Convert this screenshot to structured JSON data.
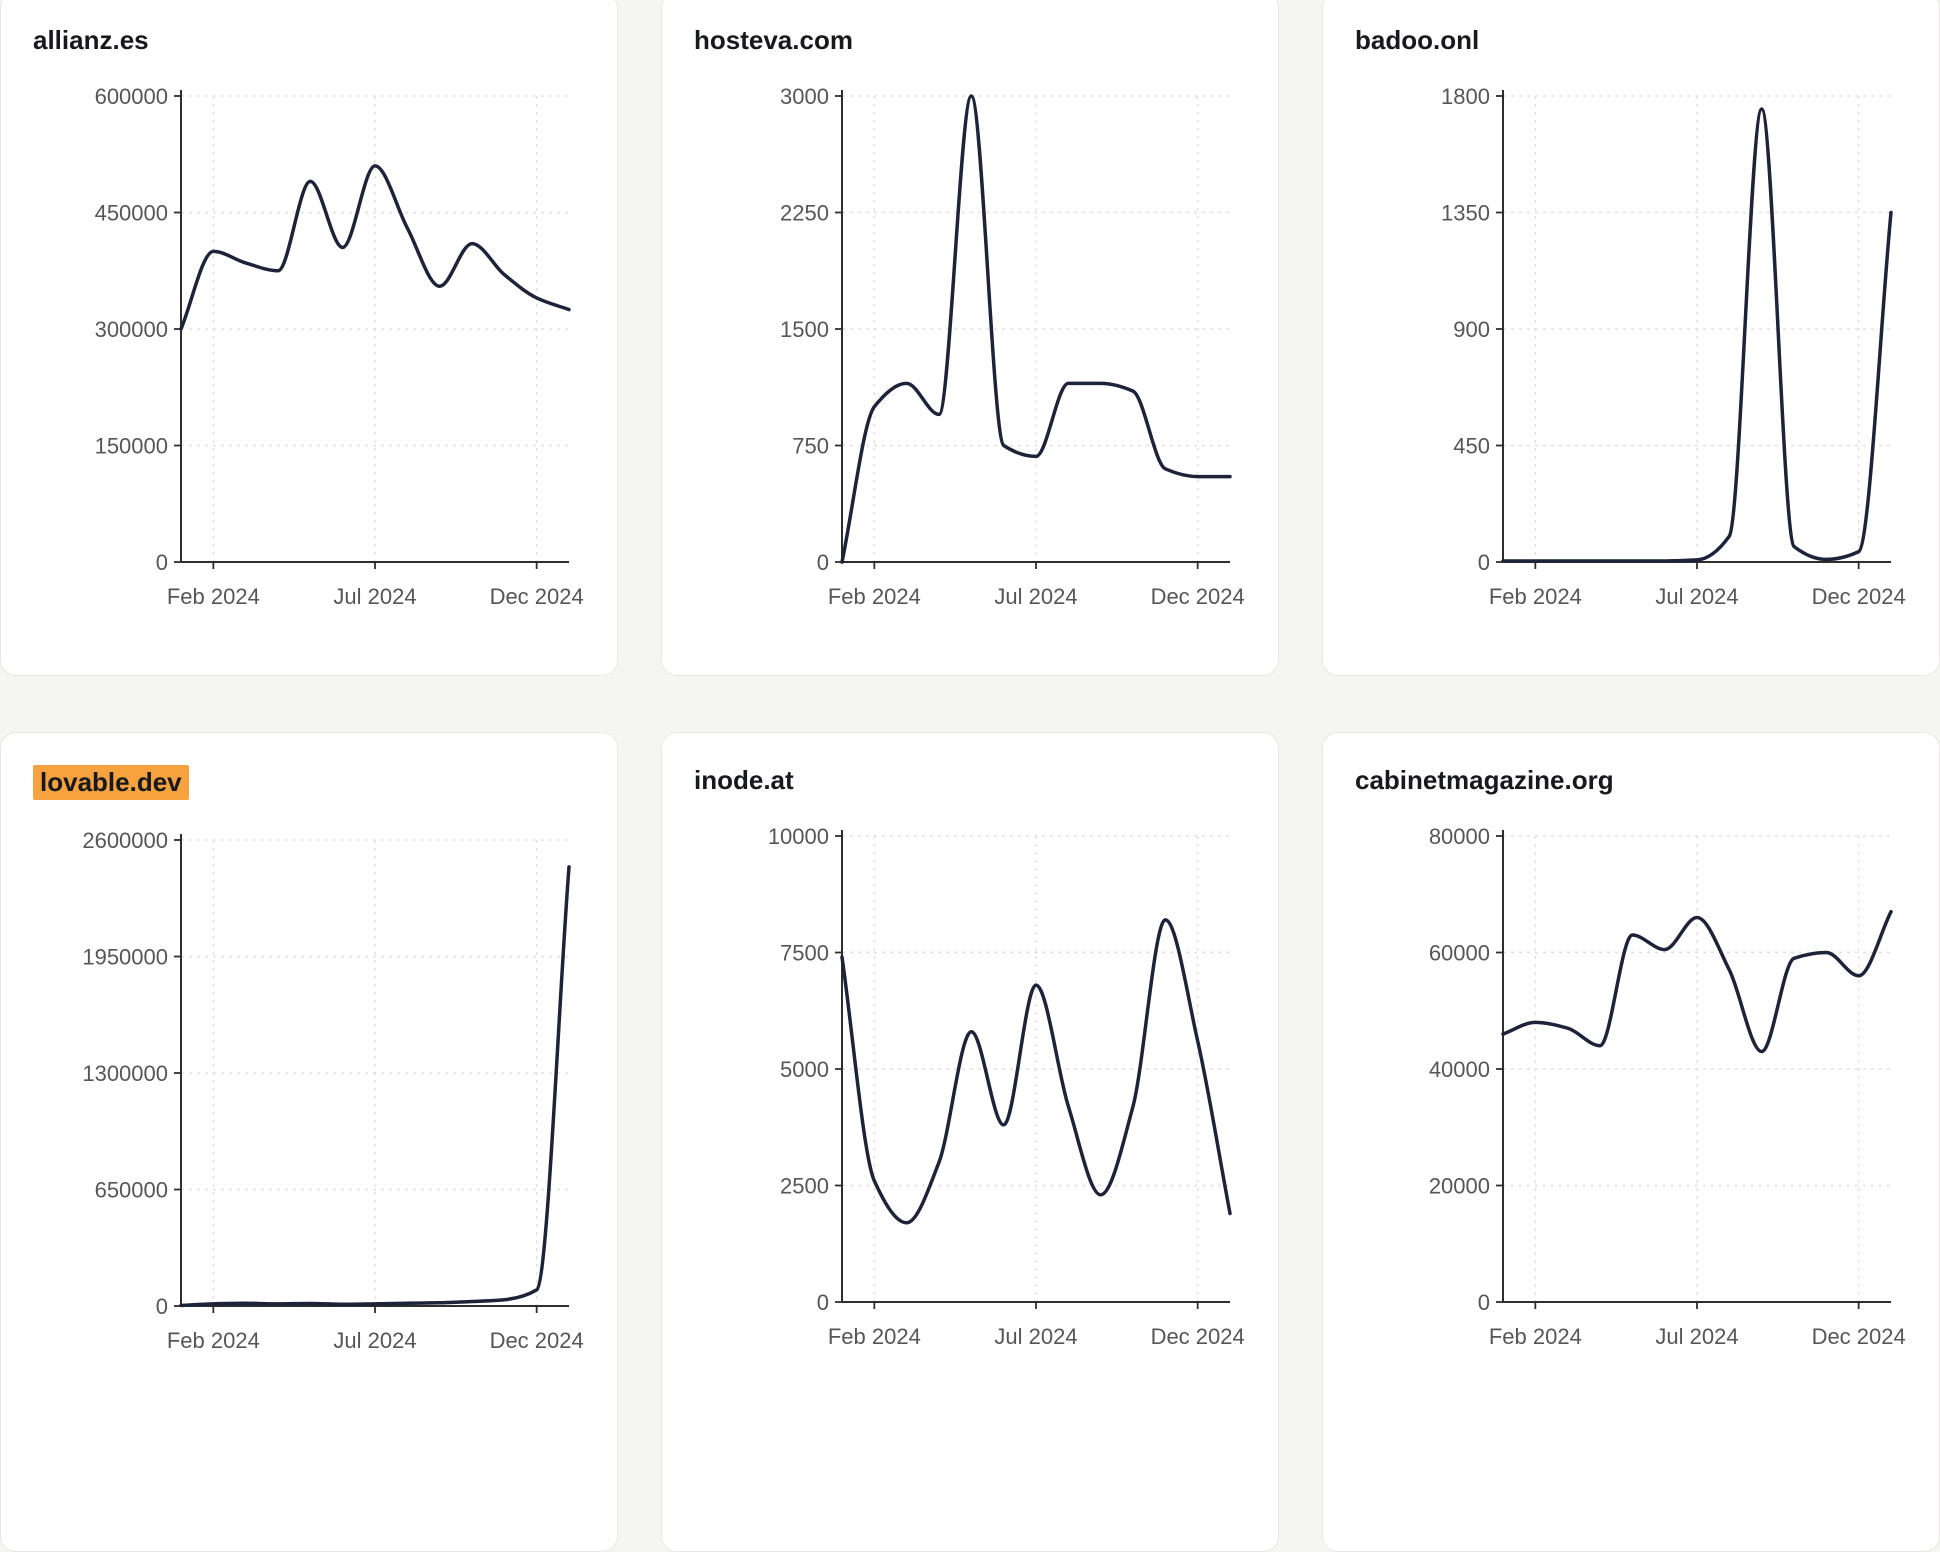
{
  "colors": {
    "line": "#1d2339",
    "axis": "#2e2e2e",
    "grid": "#e2e0dd",
    "tick_label": "#565656",
    "title": "#18181f",
    "title_highlight": "#f6a23e",
    "card_background": "#ffffff",
    "page_background": "#f5f5f4"
  },
  "chart_data": [
    {
      "type": "line",
      "title": "allianz.es",
      "title_highlighted": false,
      "x_months": [
        "Jan 2024",
        "Feb 2024",
        "Mar 2024",
        "Apr 2024",
        "May 2024",
        "Jun 2024",
        "Jul 2024",
        "Aug 2024",
        "Sep 2024",
        "Oct 2024",
        "Nov 2024",
        "Dec 2024",
        "Jan 2025"
      ],
      "values": [
        300000,
        400000,
        385000,
        375000,
        490000,
        405000,
        510000,
        430000,
        355000,
        410000,
        370000,
        340000,
        325000
      ],
      "ylim": [
        0,
        600000
      ],
      "yticks": [
        0,
        150000,
        300000,
        450000,
        600000
      ],
      "xticks": [
        {
          "month_index": 1,
          "label": "Feb 2024"
        },
        {
          "month_index": 6,
          "label": "Jul 2024"
        },
        {
          "month_index": 11,
          "label": "Dec 2024"
        }
      ],
      "grid": true
    },
    {
      "type": "line",
      "title": "hosteva.com",
      "title_highlighted": false,
      "x_months": [
        "Jan 2024",
        "Feb 2024",
        "Mar 2024",
        "Apr 2024",
        "May 2024",
        "Jun 2024",
        "Jul 2024",
        "Aug 2024",
        "Sep 2024",
        "Oct 2024",
        "Nov 2024",
        "Dec 2024",
        "Jan 2025"
      ],
      "values": [
        0,
        1000,
        1150,
        950,
        3000,
        750,
        680,
        1150,
        1150,
        1100,
        600,
        550,
        550
      ],
      "ylim": [
        0,
        3000
      ],
      "yticks": [
        0,
        750,
        1500,
        2250,
        3000
      ],
      "xticks": [
        {
          "month_index": 1,
          "label": "Feb 2024"
        },
        {
          "month_index": 6,
          "label": "Jul 2024"
        },
        {
          "month_index": 11,
          "label": "Dec 2024"
        }
      ],
      "grid": true
    },
    {
      "type": "line",
      "title": "badoo.onl",
      "title_highlighted": false,
      "x_months": [
        "Jan 2024",
        "Feb 2024",
        "Mar 2024",
        "Apr 2024",
        "May 2024",
        "Jun 2024",
        "Jul 2024",
        "Aug 2024",
        "Sep 2024",
        "Oct 2024",
        "Nov 2024",
        "Dec 2024",
        "Jan 2025"
      ],
      "values": [
        4,
        4,
        4,
        4,
        4,
        4,
        8,
        100,
        1750,
        60,
        10,
        40,
        1350
      ],
      "ylim": [
        0,
        1800
      ],
      "yticks": [
        0,
        450,
        900,
        1350,
        1800
      ],
      "xticks": [
        {
          "month_index": 1,
          "label": "Feb 2024"
        },
        {
          "month_index": 6,
          "label": "Jul 2024"
        },
        {
          "month_index": 11,
          "label": "Dec 2024"
        }
      ],
      "grid": true
    },
    {
      "type": "line",
      "title": "lovable.dev",
      "title_highlighted": true,
      "x_months": [
        "Jan 2024",
        "Feb 2024",
        "Mar 2024",
        "Apr 2024",
        "May 2024",
        "Jun 2024",
        "Jul 2024",
        "Aug 2024",
        "Sep 2024",
        "Oct 2024",
        "Nov 2024",
        "Dec 2024",
        "Jan 2025"
      ],
      "values": [
        3000,
        12000,
        15000,
        12000,
        14000,
        10000,
        12000,
        15000,
        18000,
        25000,
        35000,
        90000,
        2450000
      ],
      "ylim": [
        0,
        2600000
      ],
      "yticks": [
        0,
        650000,
        1300000,
        1950000,
        2600000
      ],
      "xticks": [
        {
          "month_index": 1,
          "label": "Feb 2024"
        },
        {
          "month_index": 6,
          "label": "Jul 2024"
        },
        {
          "month_index": 11,
          "label": "Dec 2024"
        }
      ],
      "grid": true
    },
    {
      "type": "line",
      "title": "inode.at",
      "title_highlighted": false,
      "x_months": [
        "Jan 2024",
        "Feb 2024",
        "Mar 2024",
        "Apr 2024",
        "May 2024",
        "Jun 2024",
        "Jul 2024",
        "Aug 2024",
        "Sep 2024",
        "Oct 2024",
        "Nov 2024",
        "Dec 2024",
        "Jan 2025"
      ],
      "values": [
        7400,
        2600,
        1700,
        3000,
        5800,
        3800,
        6800,
        4200,
        2300,
        4200,
        8200,
        5600,
        1900
      ],
      "ylim": [
        0,
        10000
      ],
      "yticks": [
        0,
        2500,
        5000,
        7500,
        10000
      ],
      "xticks": [
        {
          "month_index": 1,
          "label": "Feb 2024"
        },
        {
          "month_index": 6,
          "label": "Jul 2024"
        },
        {
          "month_index": 11,
          "label": "Dec 2024"
        }
      ],
      "grid": true
    },
    {
      "type": "line",
      "title": "cabinetmagazine.org",
      "title_highlighted": false,
      "x_months": [
        "Jan 2024",
        "Feb 2024",
        "Mar 2024",
        "Apr 2024",
        "May 2024",
        "Jun 2024",
        "Jul 2024",
        "Aug 2024",
        "Sep 2024",
        "Oct 2024",
        "Nov 2024",
        "Dec 2024",
        "Jan 2025"
      ],
      "values": [
        46000,
        48000,
        47000,
        44000,
        63000,
        60500,
        66000,
        57000,
        43000,
        59000,
        60000,
        56000,
        67000
      ],
      "ylim": [
        0,
        80000
      ],
      "yticks": [
        0,
        20000,
        40000,
        60000,
        80000
      ],
      "xticks": [
        {
          "month_index": 1,
          "label": "Feb 2024"
        },
        {
          "month_index": 6,
          "label": "Jul 2024"
        },
        {
          "month_index": 11,
          "label": "Dec 2024"
        }
      ],
      "grid": true
    }
  ]
}
